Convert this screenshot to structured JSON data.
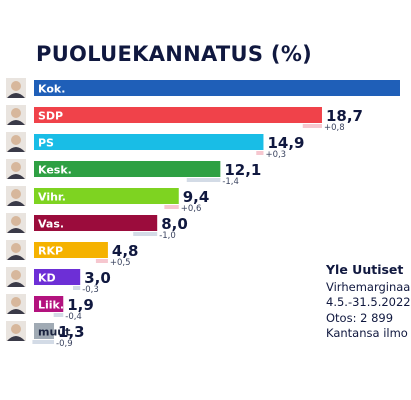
{
  "title": "PUOLUEKANNATUS (%)",
  "info": {
    "source": "Yle Uutiset",
    "margin": "Virhemarginaa",
    "period": "4.5.-31.5.2022",
    "sample": "Otos: 2 899",
    "note": "Kantansa ilmo"
  },
  "colors": {
    "Kok.": "#1f5fb8",
    "SDP": "#f0424a",
    "PS": "#19bde6",
    "Kesk.": "#2ea043",
    "Vihr.": "#7ed321",
    "Vas.": "#9b0c3c",
    "RKP": "#f5b200",
    "KD": "#6d2fd6",
    "Liik.": "#b3127e",
    "muut": "#a0aab4"
  },
  "chart_data": {
    "type": "bar",
    "orientation": "horizontal",
    "categories": [
      "Kok.",
      "SDP",
      "PS",
      "Kesk.",
      "Vihr.",
      "Vas.",
      "RKP",
      "KD",
      "Liik.",
      "muut"
    ],
    "values": [
      null,
      18.7,
      14.9,
      12.1,
      9.4,
      8.0,
      4.8,
      3.0,
      1.9,
      1.3
    ],
    "value_labels": [
      "",
      "18,7",
      "14,9",
      "12,1",
      "9,4",
      "8,0",
      "4,8",
      "3,0",
      "1,9",
      "1,3"
    ],
    "changes": [
      "",
      "+0,8",
      "+0,3",
      "-1,4",
      "+0,6",
      "-1,0",
      "+0,5",
      "-0,3",
      "-0,4",
      "-0,9"
    ],
    "change_values": [
      null,
      0.8,
      0.3,
      -1.4,
      0.6,
      -1.0,
      0.5,
      -0.3,
      -0.4,
      -0.9
    ],
    "xlim": [
      0,
      25
    ]
  }
}
